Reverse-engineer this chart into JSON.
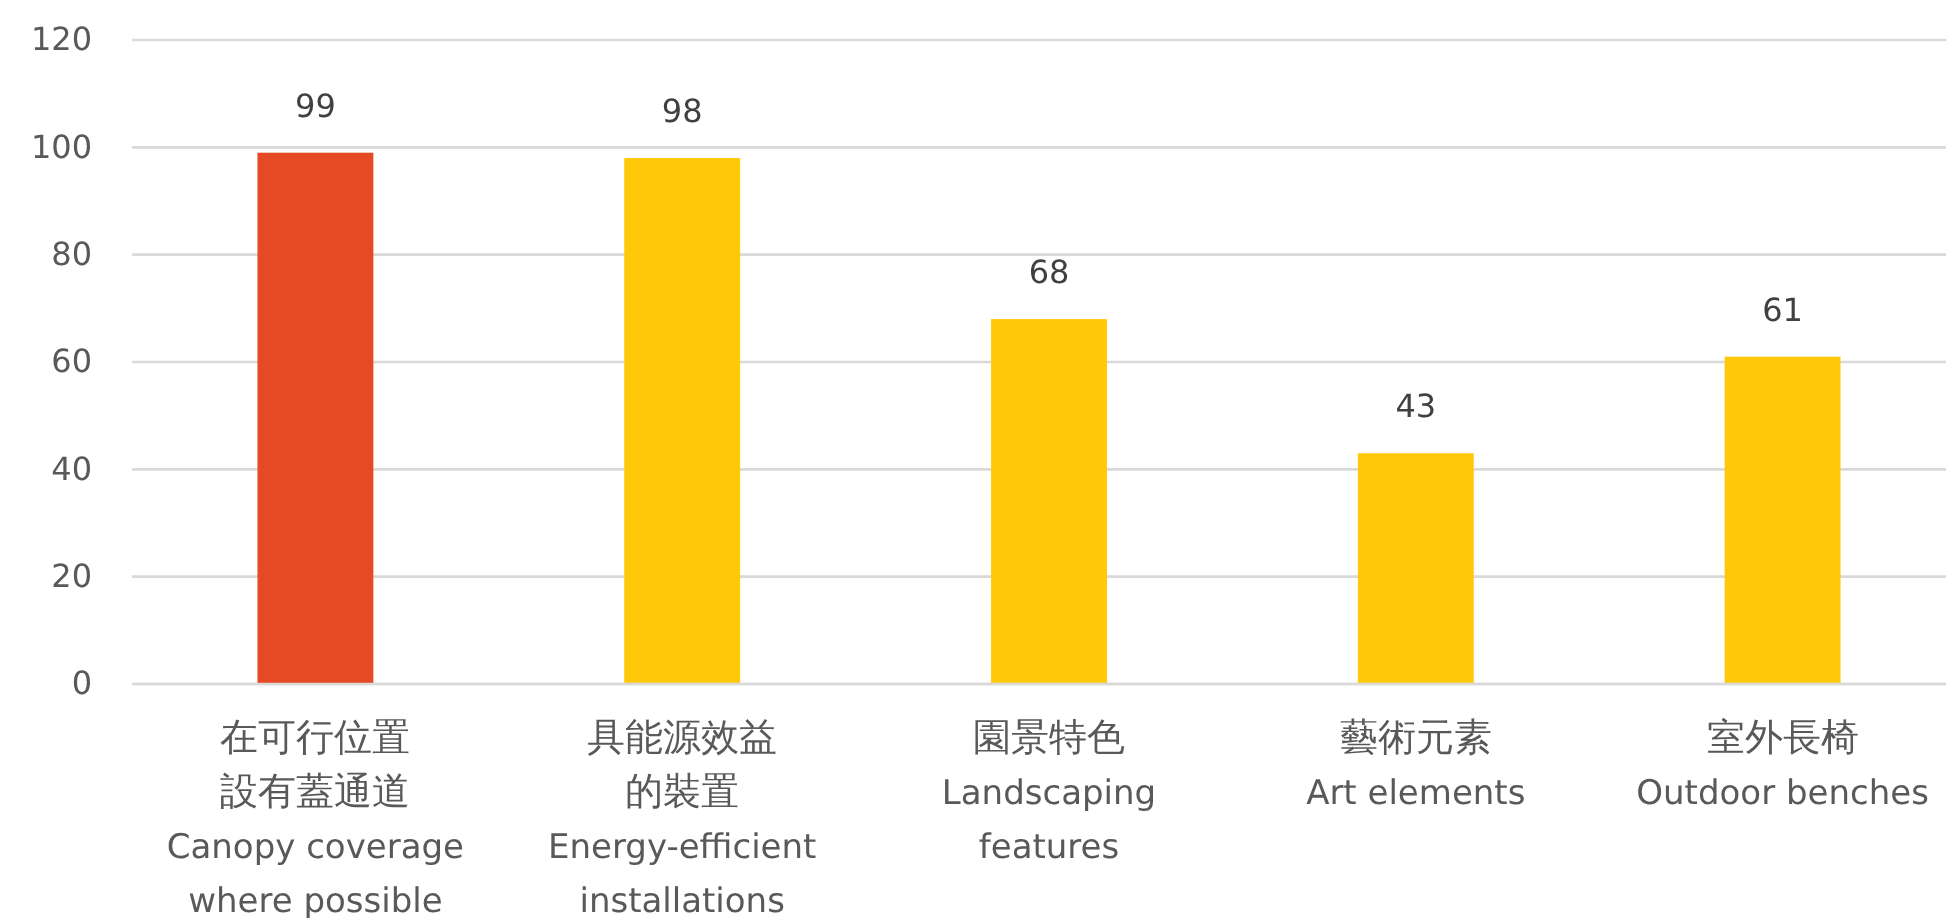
{
  "chart_data": {
    "type": "bar",
    "categories": [
      "在可行位置設有蓋通道\nCanopy coverage where possible",
      "具能源效益的裝置\nEnergy-efficient installations",
      "園景特色\nLandscaping features",
      "藝術元素\nArt elements",
      "室外長椅\nOutdoor benches"
    ],
    "values": [
      99,
      98,
      68,
      43,
      61
    ],
    "colors": [
      "#e64a24",
      "#ffc90a",
      "#ffc90a",
      "#ffc90a",
      "#ffc90a"
    ],
    "ylim": [
      0,
      120
    ],
    "yticks": [
      0,
      20,
      40,
      60,
      80,
      100,
      120
    ],
    "grid": "y",
    "data_labels": true
  }
}
